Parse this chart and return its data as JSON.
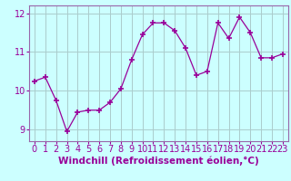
{
  "x": [
    0,
    1,
    2,
    3,
    4,
    5,
    6,
    7,
    8,
    9,
    10,
    11,
    12,
    13,
    14,
    15,
    16,
    17,
    18,
    19,
    20,
    21,
    22,
    23
  ],
  "y": [
    10.25,
    10.35,
    9.75,
    8.95,
    9.45,
    9.5,
    9.5,
    9.7,
    10.05,
    10.8,
    11.45,
    11.75,
    11.75,
    11.55,
    11.1,
    10.4,
    10.5,
    11.75,
    11.35,
    11.9,
    11.5,
    10.85,
    10.85,
    10.95
  ],
  "line_color": "#990099",
  "marker": "+",
  "marker_size": 5,
  "bg_color": "#ccffff",
  "grid_color": "#aacccc",
  "xlabel": "Windchill (Refroidissement éolien,°C)",
  "ylim": [
    8.7,
    12.2
  ],
  "xlim": [
    -0.5,
    23.5
  ],
  "yticks": [
    9,
    10,
    11,
    12
  ],
  "xticks": [
    0,
    1,
    2,
    3,
    4,
    5,
    6,
    7,
    8,
    9,
    10,
    11,
    12,
    13,
    14,
    15,
    16,
    17,
    18,
    19,
    20,
    21,
    22,
    23
  ],
  "xlabel_fontsize": 7.5,
  "tick_fontsize": 7,
  "spine_color": "#9966aa"
}
